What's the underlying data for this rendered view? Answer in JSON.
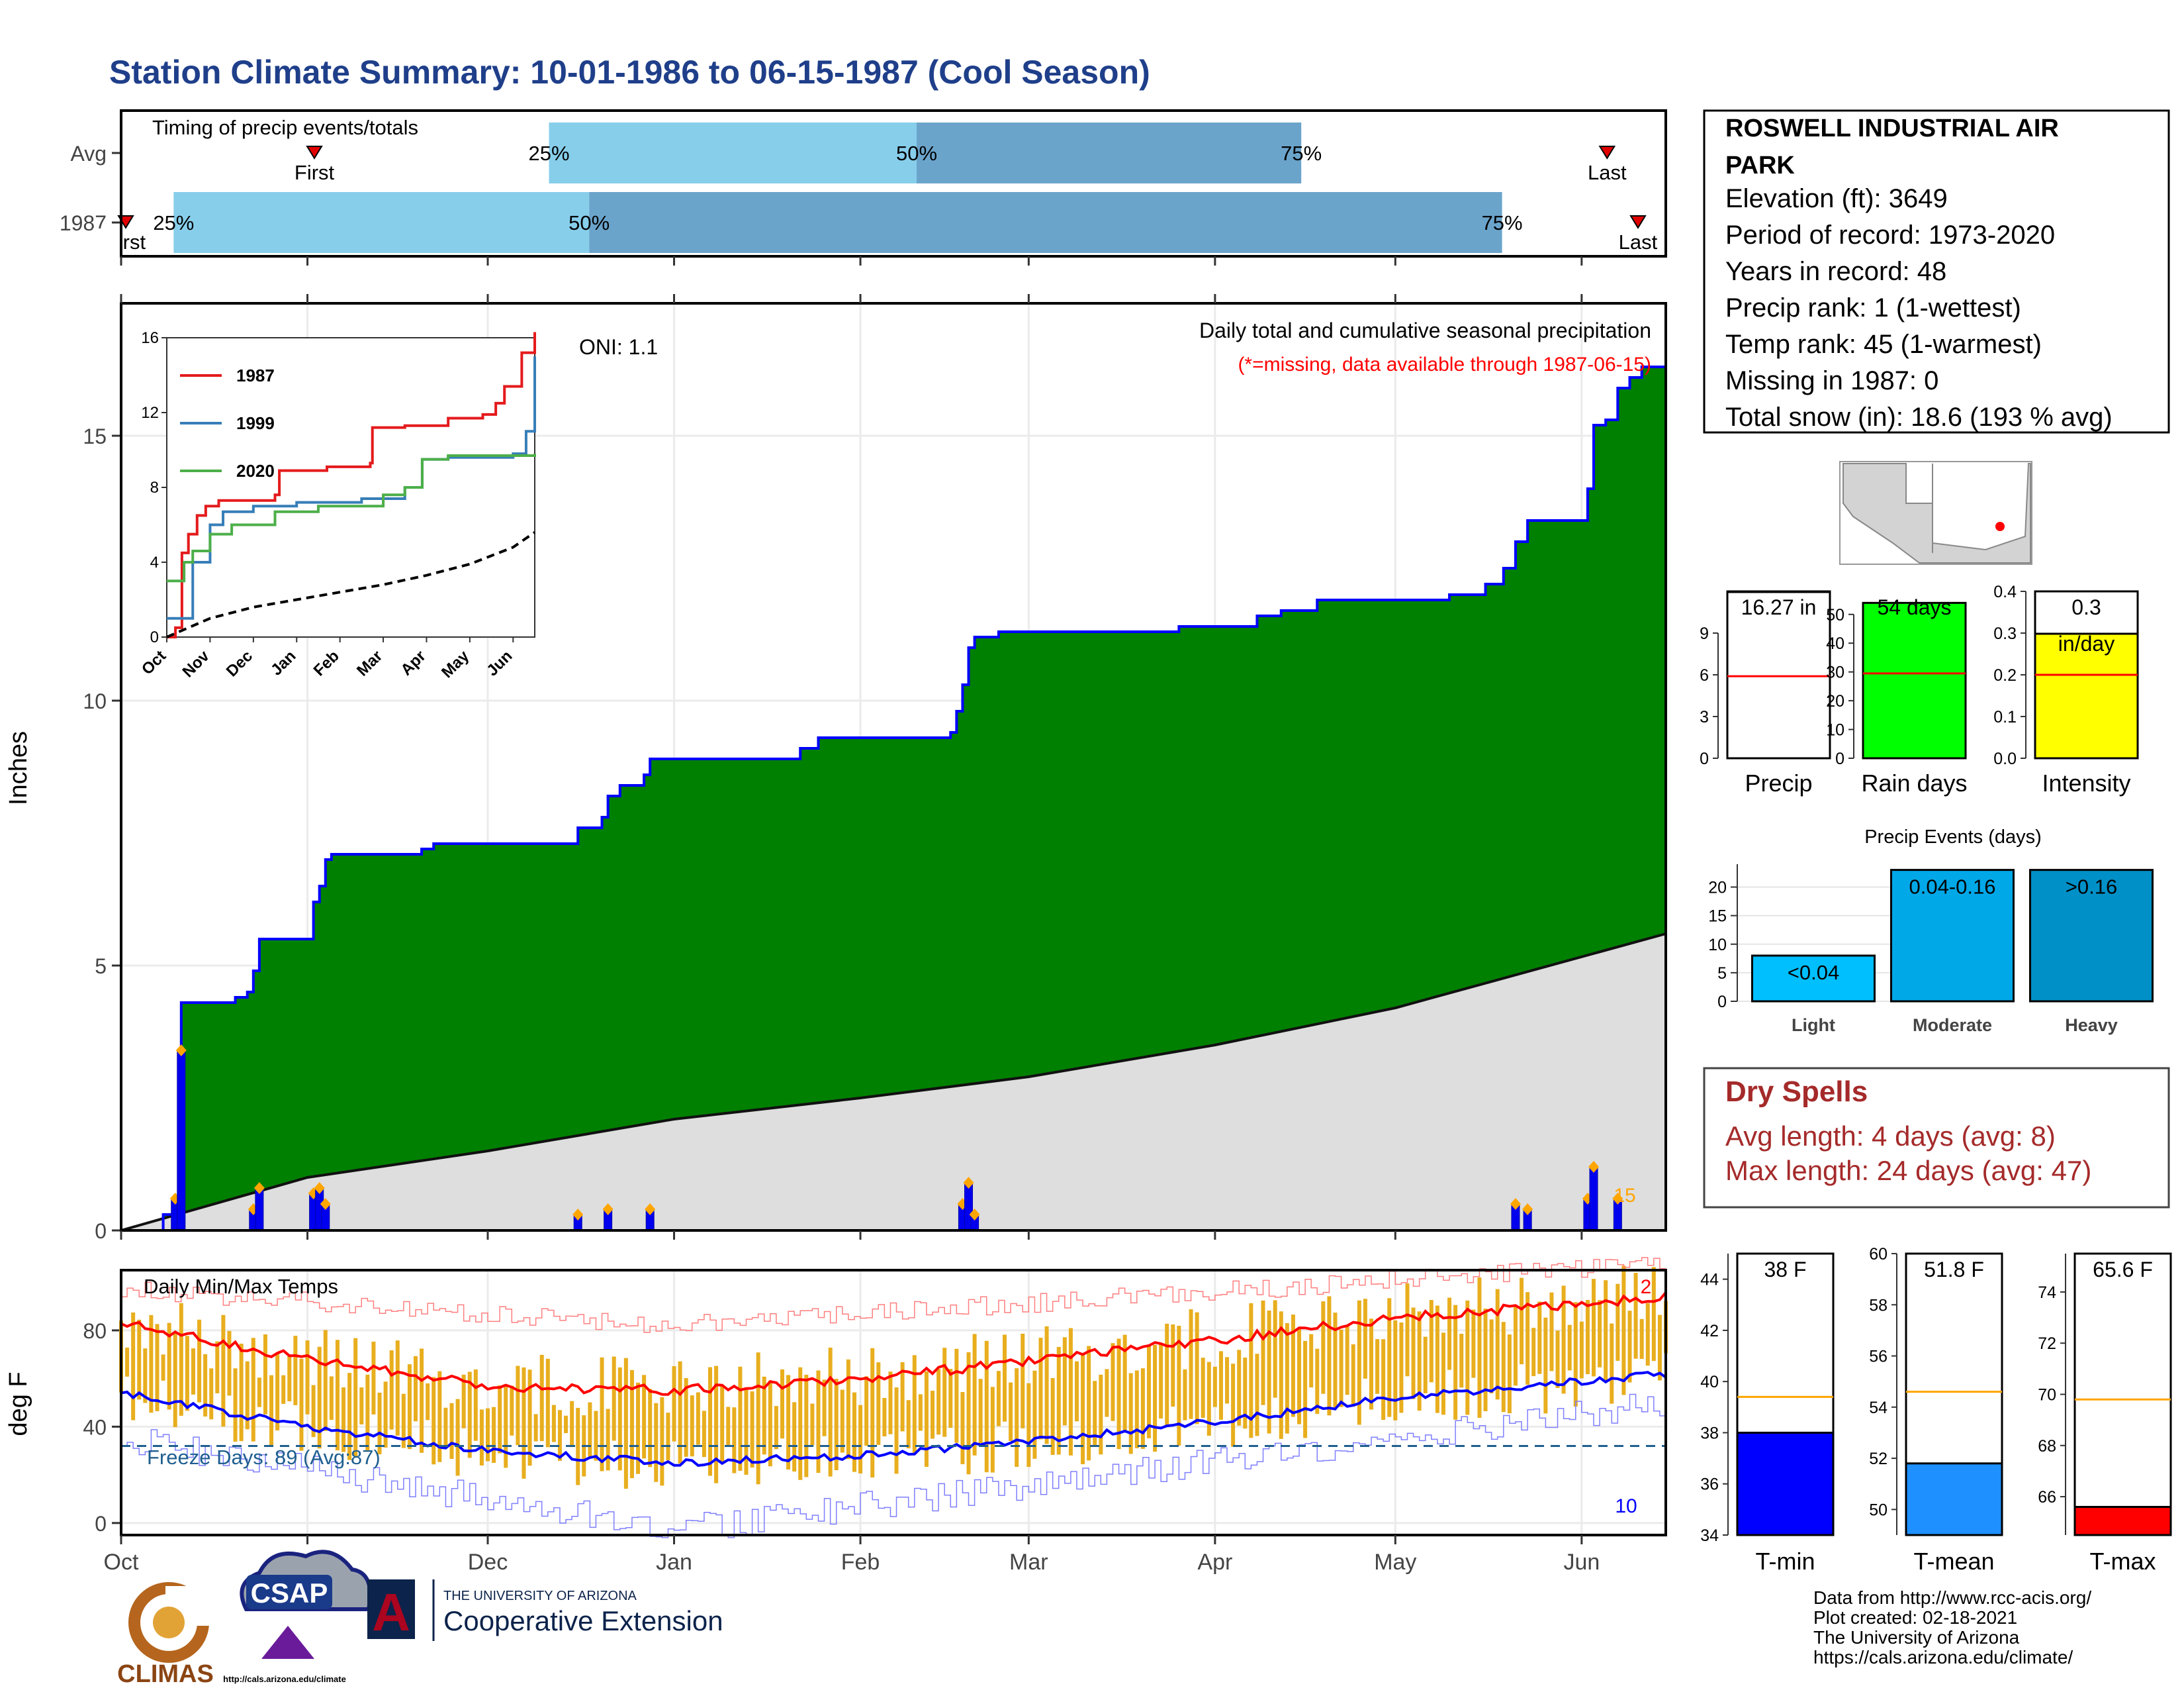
{
  "title": "Station Climate Summary: 10-01-1986 to 06-15-1987 (Cool Season)",
  "colors": {
    "title": "#1f3f8a",
    "light_blue": "#87ceeb",
    "steel_blue": "#6ba4cb",
    "green": "#008000",
    "gray_fill": "#dedede",
    "blue_line": "#0000ff",
    "red": "#ff0000",
    "orange": "#ffa500",
    "gold": "#e8ae1e",
    "dry_red": "#a52a2a",
    "yellow": "#ffff00",
    "lime": "#00ff00"
  },
  "timing": {
    "label": "Timing of precip events/totals",
    "rows": [
      {
        "name": "Avg",
        "first": "First",
        "last": "Last",
        "q25": "25%",
        "q50": "50%",
        "q75": "75%",
        "first_frac": 0.048,
        "q25_frac": 0.277,
        "q50_frac": 0.515,
        "q75_frac": 0.764,
        "last_frac": 0.962
      },
      {
        "name": "1987",
        "first": "First",
        "last": "Last",
        "q25": "25%",
        "q50": "50%",
        "q75": "75%",
        "first_frac": 0.003,
        "q25_frac": 0.034,
        "q50_frac": 0.303,
        "q75_frac": 0.894,
        "last_frac": 0.982
      }
    ]
  },
  "main_chart": {
    "ylabel": "Inches",
    "oni": "ONI: 1.1",
    "heading": "Daily total and cumulative seasonal precipitation",
    "note": "(*=missing, data available through 1987-06-15)",
    "snow_count": "15",
    "yticks": [
      "0",
      "5",
      "10",
      "15"
    ]
  },
  "inset": {
    "yticks": [
      "0",
      "4",
      "8",
      "12",
      "16"
    ],
    "months": [
      "Oct",
      "Nov",
      "Dec",
      "Jan",
      "Feb",
      "Mar",
      "Apr",
      "May",
      "Jun"
    ],
    "legend": [
      {
        "label": "1987",
        "color": "#e41a1c"
      },
      {
        "label": "1999",
        "color": "#377eb8"
      },
      {
        "label": "2020",
        "color": "#4daf4a"
      }
    ]
  },
  "temp_chart": {
    "ylabel": "deg F",
    "heading": "Daily Min/Max Temps",
    "freeze": "Freeze Days: 89 (Avg:87)",
    "record_high_count": "2",
    "record_low_count": "10",
    "yticks": [
      "0",
      "40",
      "80"
    ]
  },
  "x_months": [
    "Oct",
    "Nov",
    "Dec",
    "Jan",
    "Feb",
    "Mar",
    "Apr",
    "May",
    "Jun"
  ],
  "station": {
    "name_line1": "ROSWELL INDUSTRIAL AIR",
    "name_line2": "PARK",
    "elevation": "Elevation (ft): 3649",
    "period": "Period of record: 1973-2020",
    "years": "Years in record: 48",
    "precip_rank": "Precip rank: 1 (1-wettest)",
    "temp_rank": "Temp rank: 45 (1-warmest)",
    "missing": "Missing in 1987: 0",
    "snow": "Total snow (in): 18.6 (193 % avg)"
  },
  "mini_bars": [
    {
      "value_label": "16.27 in",
      "xlabel": "Precip",
      "ticks": [
        "0",
        "3",
        "6",
        "9"
      ],
      "max": 12,
      "value": 16.27,
      "avg": 5.9,
      "fill": "#ffffff",
      "label_in_fill": false
    },
    {
      "value_label": "54 days",
      "xlabel": "Rain days",
      "ticks": [
        "0",
        "10",
        "20",
        "30",
        "40",
        "50"
      ],
      "max": 58,
      "value": 54,
      "avg": 29.5,
      "fill": "#00ff00",
      "label_in_fill": true
    },
    {
      "value_label": "0.3",
      "value_label2": "in/day",
      "xlabel": "Intensity",
      "ticks": [
        "0.0",
        "0.1",
        "0.2",
        "0.3",
        "0.4"
      ],
      "max": 0.4,
      "value": 0.3,
      "avg": 0.2,
      "fill": "#ffff00",
      "label_in_fill": false
    }
  ],
  "events": {
    "title": "Precip Events (days)",
    "ticks": [
      "0",
      "5",
      "10",
      "15",
      "20"
    ],
    "bars": [
      {
        "label": "<0.04",
        "xlabel": "Light",
        "value": 8,
        "color": "#00bfff"
      },
      {
        "label": "0.04-0.16",
        "xlabel": "Moderate",
        "value": 23,
        "color": "#00a8e8"
      },
      {
        "label": ">0.16",
        "xlabel": "Heavy",
        "value": 23,
        "color": "#0090c8"
      }
    ]
  },
  "dry_spells": {
    "title": "Dry Spells",
    "avg": "Avg length: 4 days (avg: 8)",
    "max": "Max length: 24 days (avg: 47)"
  },
  "temp_bars": [
    {
      "value_label": "38 F",
      "xlabel": "T-min",
      "ticks": [
        "34",
        "36",
        "38",
        "40",
        "42",
        "44"
      ],
      "min": 34,
      "max": 45,
      "value": 38,
      "avg": 39.4,
      "fill": "#0000ff"
    },
    {
      "value_label": "51.8 F",
      "xlabel": "T-mean",
      "ticks": [
        "50",
        "52",
        "54",
        "56",
        "58",
        "60"
      ],
      "min": 49,
      "max": 60,
      "value": 51.8,
      "avg": 54.6,
      "fill": "#1e90ff"
    },
    {
      "value_label": "65.6 F",
      "xlabel": "T-max",
      "ticks": [
        "66",
        "68",
        "70",
        "72",
        "74"
      ],
      "min": 64.5,
      "max": 75.5,
      "value": 65.6,
      "avg": 69.8,
      "fill": "#ff0000"
    }
  ],
  "footer": {
    "source": "Data from http://www.rcc-acis.org/",
    "created": "Plot created: 02-18-2021",
    "univ": "The University of Arizona",
    "url": "https://cals.arizona.edu/climate/",
    "climas": "CLIMAS",
    "csap": "CSAP",
    "csap_url": "http://cals.arizona.edu/climate",
    "ua_small": "THE UNIVERSITY OF ARIZONA",
    "coop": "Cooperative Extension",
    "ua_letter": "A"
  },
  "chart_data": [
    {
      "type": "area",
      "title": "Daily total and cumulative seasonal precipitation",
      "ylabel": "Inches",
      "ylim": [
        0,
        17.5
      ],
      "x_range": [
        "1986-10-01",
        "1987-06-15"
      ],
      "series": [
        {
          "name": "1987",
          "points": [
            [
              "1986-10-01",
              0
            ],
            [
              "1986-10-08",
              0.3
            ],
            [
              "1986-10-10",
              0.6
            ],
            [
              "1986-10-11",
              4.3
            ],
            [
              "1986-10-20",
              4.4
            ],
            [
              "1986-10-22",
              4.5
            ],
            [
              "1986-10-23",
              4.9
            ],
            [
              "1986-10-24",
              5.5
            ],
            [
              "1986-11-01",
              5.5
            ],
            [
              "1986-11-02",
              6.2
            ],
            [
              "1986-11-03",
              6.5
            ],
            [
              "1986-11-04",
              7.0
            ],
            [
              "1986-11-05",
              7.1
            ],
            [
              "1986-11-20",
              7.2
            ],
            [
              "1986-11-22",
              7.3
            ],
            [
              "1986-11-30",
              7.3
            ],
            [
              "1986-12-01",
              7.3
            ],
            [
              "1986-12-15",
              7.3
            ],
            [
              "1986-12-16",
              7.6
            ],
            [
              "1986-12-20",
              7.8
            ],
            [
              "1986-12-21",
              8.2
            ],
            [
              "1986-12-23",
              8.4
            ],
            [
              "1986-12-27",
              8.6
            ],
            [
              "1986-12-28",
              8.9
            ],
            [
              "1987-01-15",
              8.9
            ],
            [
              "1987-01-22",
              9.1
            ],
            [
              "1987-01-25",
              9.3
            ],
            [
              "1987-02-10",
              9.3
            ],
            [
              "1987-02-15",
              9.3
            ],
            [
              "1987-02-16",
              9.4
            ],
            [
              "1987-02-17",
              9.8
            ],
            [
              "1987-02-18",
              10.3
            ],
            [
              "1987-02-19",
              11.0
            ],
            [
              "1987-02-20",
              11.2
            ],
            [
              "1987-02-24",
              11.3
            ],
            [
              "1987-03-25",
              11.3
            ],
            [
              "1987-03-26",
              11.4
            ],
            [
              "1987-04-08",
              11.6
            ],
            [
              "1987-04-12",
              11.7
            ],
            [
              "1987-04-17",
              11.7
            ],
            [
              "1987-04-18",
              11.9
            ],
            [
              "1987-05-01",
              11.9
            ],
            [
              "1987-05-10",
              12.0
            ],
            [
              "1987-05-16",
              12.2
            ],
            [
              "1987-05-19",
              12.5
            ],
            [
              "1987-05-21",
              13.0
            ],
            [
              "1987-05-23",
              13.4
            ],
            [
              "1987-06-01",
              13.4
            ],
            [
              "1987-06-02",
              14.0
            ],
            [
              "1987-06-03",
              15.2
            ],
            [
              "1987-06-05",
              15.3
            ],
            [
              "1987-06-07",
              15.9
            ],
            [
              "1987-06-09",
              16.1
            ],
            [
              "1987-06-11",
              16.3
            ],
            [
              "1987-06-15",
              16.27
            ]
          ]
        },
        {
          "name": "Avg",
          "points": [
            [
              "1986-10-01",
              0
            ],
            [
              "1986-11-01",
              1.0
            ],
            [
              "1986-12-01",
              1.5
            ],
            [
              "1987-01-01",
              2.1
            ],
            [
              "1987-02-01",
              2.5
            ],
            [
              "1987-03-01",
              2.9
            ],
            [
              "1987-04-01",
              3.5
            ],
            [
              "1987-05-01",
              4.2
            ],
            [
              "1987-06-15",
              5.6
            ]
          ]
        }
      ],
      "daily_precip": [
        [
          "1986-10-10",
          0.6
        ],
        [
          "1986-10-11",
          3.4
        ],
        [
          "1986-10-23",
          0.4
        ],
        [
          "1986-10-24",
          0.8
        ],
        [
          "1986-11-02",
          0.7
        ],
        [
          "1986-11-03",
          0.8
        ],
        [
          "1986-11-04",
          0.5
        ],
        [
          "1986-12-16",
          0.3
        ],
        [
          "1986-12-21",
          0.4
        ],
        [
          "1986-12-28",
          0.4
        ],
        [
          "1987-02-18",
          0.5
        ],
        [
          "1987-02-19",
          0.9
        ],
        [
          "1987-02-20",
          0.3
        ],
        [
          "1987-05-21",
          0.5
        ],
        [
          "1987-05-23",
          0.4
        ],
        [
          "1987-06-02",
          0.6
        ],
        [
          "1987-06-03",
          1.2
        ],
        [
          "1987-06-07",
          0.6
        ]
      ]
    },
    {
      "type": "line",
      "title": "",
      "ylim": [
        0,
        16
      ],
      "x_range": [
        "Oct",
        "Jun"
      ],
      "series": [
        {
          "name": "1987",
          "points": [
            [
              0,
              0
            ],
            [
              0.2,
              0.5
            ],
            [
              0.35,
              4.5
            ],
            [
              0.5,
              5.5
            ],
            [
              0.7,
              6.5
            ],
            [
              0.9,
              7.0
            ],
            [
              1.2,
              7.3
            ],
            [
              2.5,
              7.6
            ],
            [
              2.6,
              8.9
            ],
            [
              3.7,
              9.1
            ],
            [
              4.7,
              9.3
            ],
            [
              4.75,
              11.2
            ],
            [
              5.5,
              11.3
            ],
            [
              6.5,
              11.7
            ],
            [
              7.3,
              11.9
            ],
            [
              7.6,
              12.5
            ],
            [
              7.8,
              13.4
            ],
            [
              8.2,
              15.2
            ],
            [
              8.5,
              16.3
            ]
          ]
        },
        {
          "name": "1999",
          "points": [
            [
              0,
              1
            ],
            [
              0.5,
              1
            ],
            [
              0.6,
              4
            ],
            [
              1.0,
              6
            ],
            [
              1.3,
              6.7
            ],
            [
              2.0,
              7
            ],
            [
              3.0,
              7.2
            ],
            [
              4.5,
              7.4
            ],
            [
              5.5,
              8.0
            ],
            [
              5.9,
              9.5
            ],
            [
              6.5,
              9.6
            ],
            [
              8.0,
              9.8
            ],
            [
              8.3,
              11
            ],
            [
              8.5,
              15
            ]
          ]
        },
        {
          "name": "2020",
          "points": [
            [
              0,
              3
            ],
            [
              0.4,
              4
            ],
            [
              0.6,
              4.6
            ],
            [
              1.0,
              5.5
            ],
            [
              1.5,
              6
            ],
            [
              2.5,
              6.7
            ],
            [
              3.5,
              7
            ],
            [
              5.0,
              7.6
            ],
            [
              5.5,
              8.0
            ],
            [
              5.9,
              9.5
            ],
            [
              6.5,
              9.7
            ],
            [
              8.5,
              9.8
            ]
          ]
        },
        {
          "name": "Avg",
          "points": [
            [
              0,
              0
            ],
            [
              1,
              1
            ],
            [
              2,
              1.6
            ],
            [
              3,
              2
            ],
            [
              4,
              2.4
            ],
            [
              5,
              2.8
            ],
            [
              6,
              3.3
            ],
            [
              7,
              3.9
            ],
            [
              8,
              4.8
            ],
            [
              8.5,
              5.6
            ]
          ]
        }
      ]
    },
    {
      "type": "line",
      "title": "Daily Min/Max Temps",
      "ylabel": "deg F",
      "ylim": [
        -5,
        105
      ],
      "x_range": [
        "1986-10-01",
        "1987-06-15"
      ],
      "series": [
        {
          "name": "normal max",
          "points": [
            [
              "1986-10-01",
              83
            ],
            [
              "1986-11-01",
              68
            ],
            [
              "1986-12-01",
              57
            ],
            [
              "1987-01-01",
              55
            ],
            [
              "1987-02-01",
              60
            ],
            [
              "1987-03-01",
              67
            ],
            [
              "1987-04-01",
              76
            ],
            [
              "1987-05-01",
              85
            ],
            [
              "1987-06-15",
              94
            ]
          ]
        },
        {
          "name": "normal min",
          "points": [
            [
              "1986-10-01",
              54
            ],
            [
              "1986-11-01",
              40
            ],
            [
              "1986-12-01",
              30
            ],
            [
              "1987-01-01",
              25
            ],
            [
              "1987-02-01",
              28
            ],
            [
              "1987-03-01",
              34
            ],
            [
              "1987-04-01",
              42
            ],
            [
              "1987-05-01",
              52
            ],
            [
              "1987-06-15",
              62
            ]
          ]
        },
        {
          "name": "record max",
          "points": [
            [
              "1986-10-01",
              97
            ],
            [
              "1987-01-01",
              82
            ],
            [
              "1987-06-15",
              108
            ]
          ]
        },
        {
          "name": "record min",
          "points": [
            [
              "1986-10-01",
              35
            ],
            [
              "1987-01-01",
              -3
            ],
            [
              "1987-06-15",
              50
            ]
          ]
        }
      ],
      "freeze_line": 32
    }
  ]
}
